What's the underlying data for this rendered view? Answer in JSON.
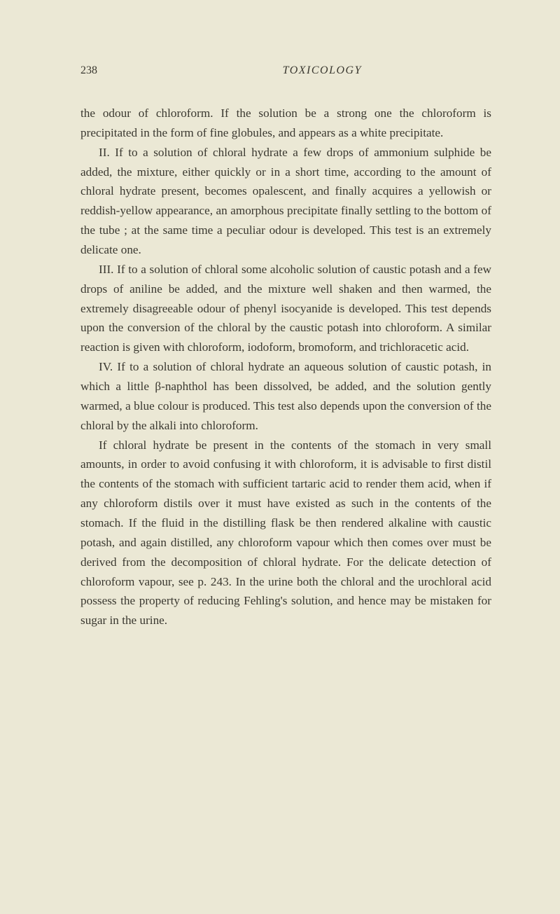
{
  "page_number": "238",
  "running_title": "TOXICOLOGY",
  "paragraphs": {
    "p1": "the odour of chloroform. If the solution be a strong one the chloroform is precipitated in the form of fine globules, and appears as a white precipitate.",
    "p2": "II. If to a solution of chloral hydrate a few drops of ammonium sulphide be added, the mixture, either quickly or in a short time, according to the amount of chloral hydrate present, becomes opalescent, and finally acquires a yellowish or reddish-yellow appearance, an amorphous precipitate finally settling to the bottom of the tube ; at the same time a peculiar odour is developed. This test is an extremely delicate one.",
    "p3": "III. If to a solution of chloral some alcoholic solution of caustic potash and a few drops of aniline be added, and the mixture well shaken and then warmed, the extremely disagreeable odour of phenyl isocyanide is developed. This test depends upon the conversion of the chloral by the caustic potash into chloroform. A similar reaction is given with chloroform, iodoform, bromoform, and trichloracetic acid.",
    "p4": "IV. If to a solution of chloral hydrate an aqueous solution of caustic potash, in which a little β-naphthol has been dissolved, be added, and the solution gently warmed, a blue colour is produced. This test also depends upon the conversion of the chloral by the alkali into chloroform.",
    "p5": "If chloral hydrate be present in the contents of the stomach in very small amounts, in order to avoid confusing it with chloroform, it is advisable to first distil the contents of the stomach with sufficient tartaric acid to render them acid, when if any chloroform distils over it must have existed as such in the contents of the stomach. If the fluid in the distilling flask be then rendered alkaline with caustic potash, and again distilled, any chloroform vapour which then comes over must be derived from the decomposition of chloral hydrate. For the delicate detection of chloroform vapour, see p. 243. In the urine both the chloral and the urochloral acid possess the property of reducing Fehling's solution, and hence may be mistaken for sugar in the urine."
  },
  "colors": {
    "background": "#ebe8d5",
    "text": "#3a3830"
  },
  "typography": {
    "body_fontsize": 17.2,
    "header_fontsize": 16,
    "line_height": 1.62,
    "font_family": "Georgia, Times New Roman, serif"
  }
}
